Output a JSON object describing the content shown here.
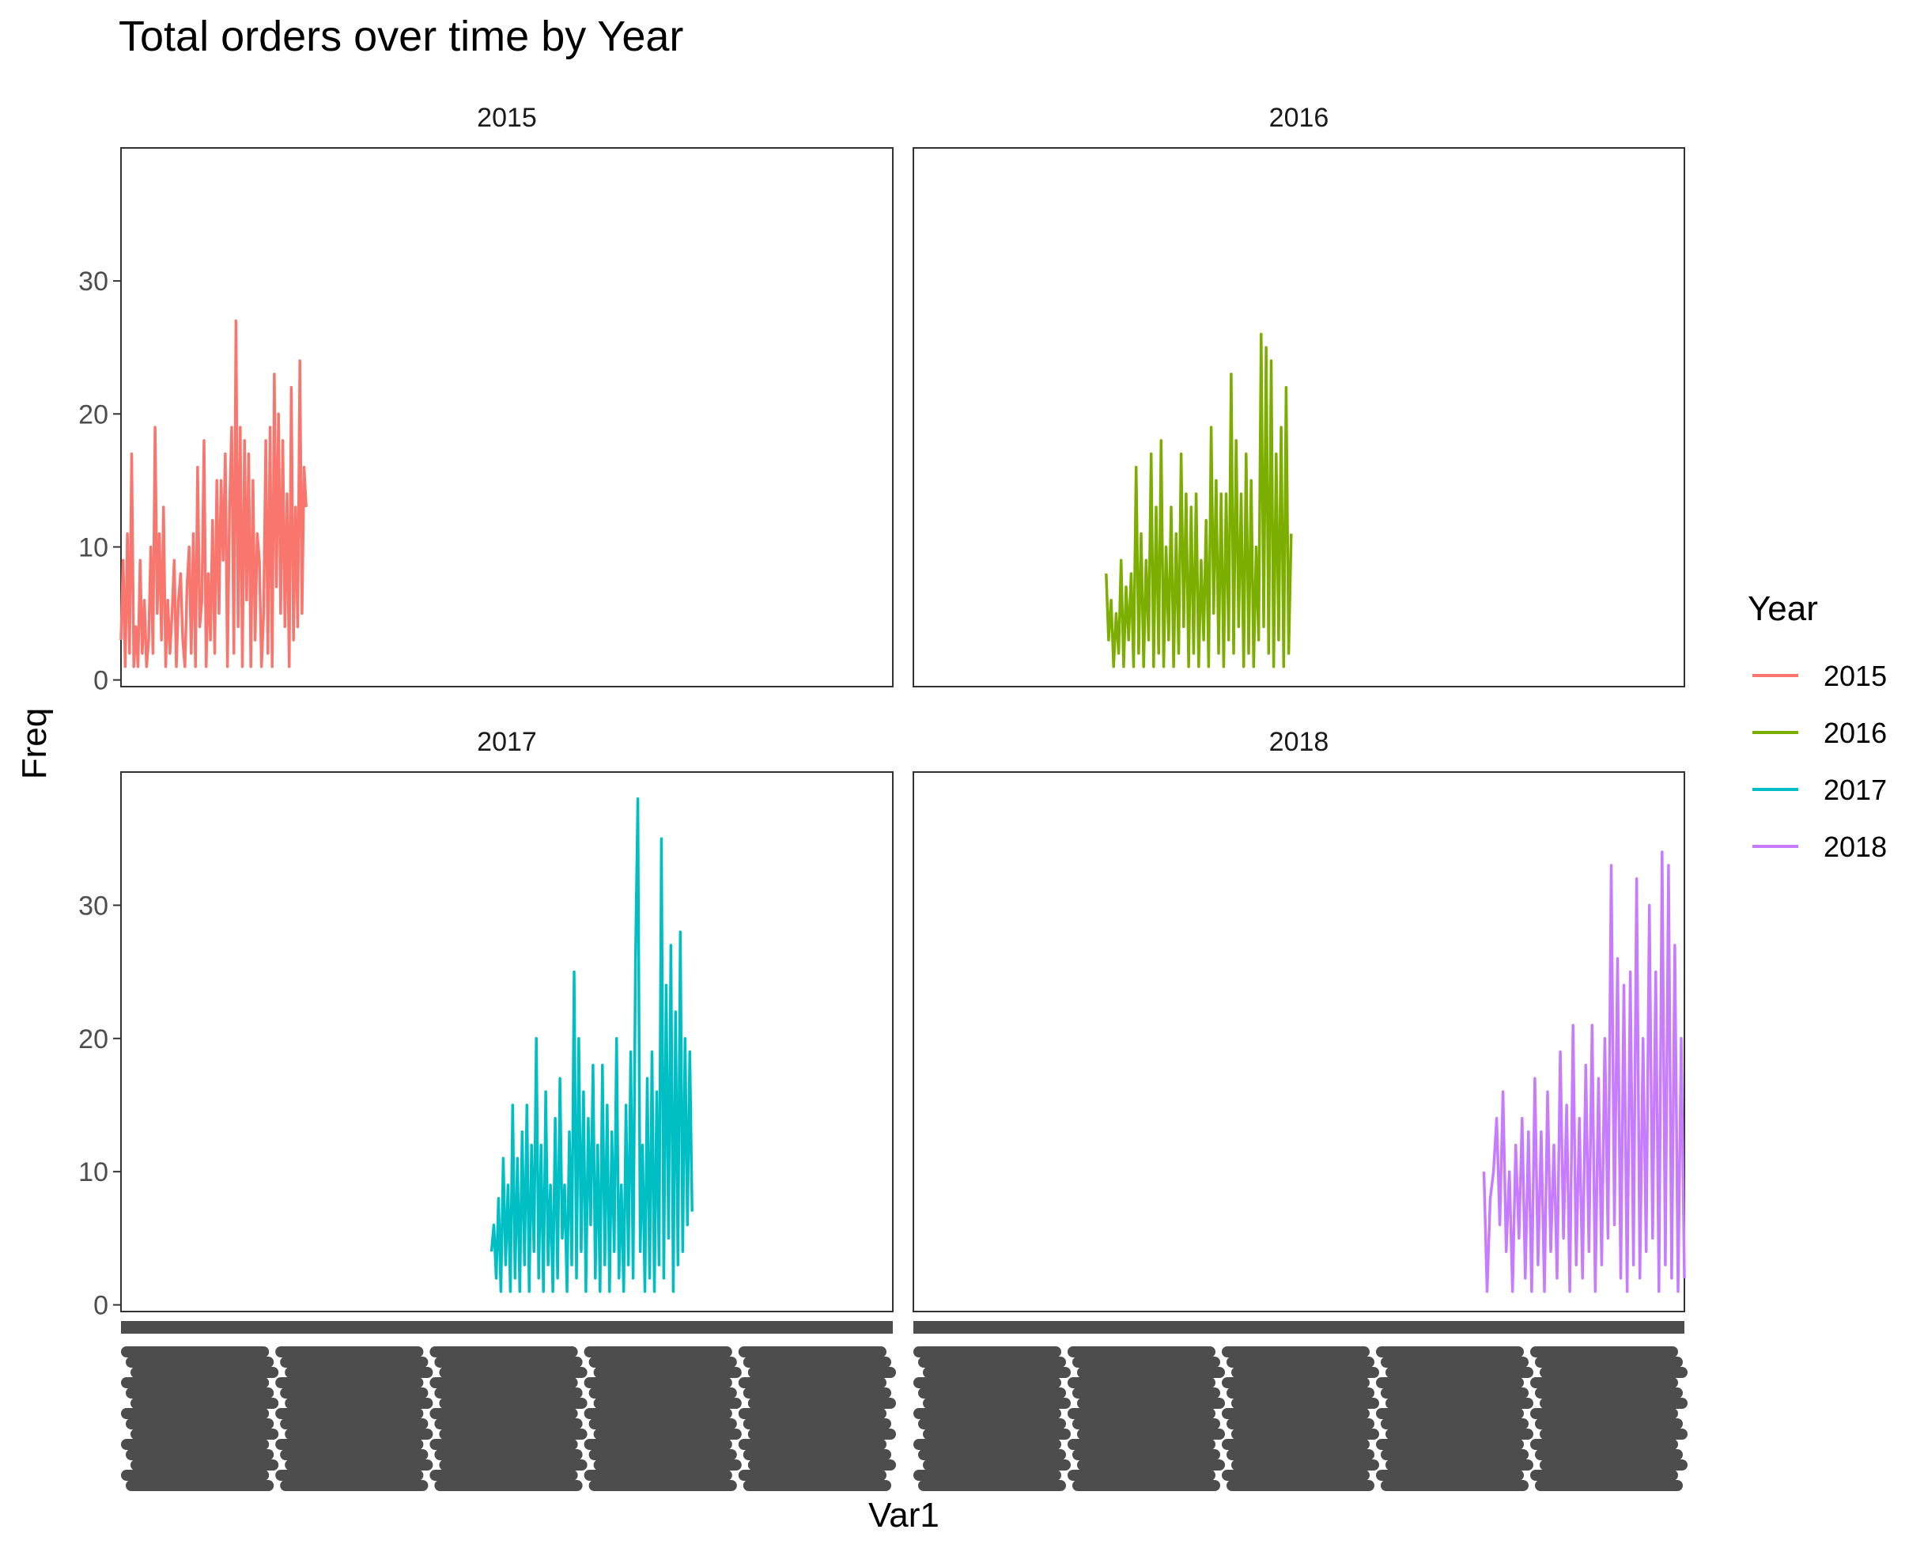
{
  "chart_data": {
    "type": "line",
    "title": "Total orders over time by Year",
    "xlabel": "Var1",
    "ylabel": "Freq",
    "ylim": [
      -0.5,
      40
    ],
    "yticks": [
      0,
      10,
      20,
      30
    ],
    "grid": false,
    "legend": {
      "title": "Year",
      "placement": "right"
    },
    "facets": [
      {
        "label": "2015",
        "name": "2015",
        "color": "#F8766D",
        "x_start": 0.0,
        "x_end": 0.24,
        "values": [
          3,
          9,
          1,
          11,
          2,
          17,
          1,
          4,
          1,
          9,
          2,
          6,
          1,
          3,
          10,
          2,
          19,
          5,
          11,
          3,
          13,
          1,
          6,
          2,
          5,
          9,
          1,
          6,
          8,
          3,
          1,
          7,
          10,
          2,
          11,
          1,
          16,
          4,
          6,
          18,
          1,
          8,
          3,
          12,
          2,
          15,
          5,
          15,
          9,
          17,
          1,
          13,
          19,
          2,
          27,
          4,
          19,
          1,
          18,
          6,
          17,
          1,
          15,
          3,
          11,
          9,
          1,
          5,
          18,
          2,
          19,
          1,
          23,
          7,
          20,
          5,
          18,
          4,
          14,
          1,
          22,
          3,
          13,
          4,
          24,
          5,
          16,
          13
        ]
      },
      {
        "label": "2016",
        "name": "2016",
        "color": "#7CAE00",
        "x_start": 0.25,
        "x_end": 0.49,
        "values": [
          8,
          3,
          6,
          1,
          5,
          2,
          9,
          1,
          7,
          3,
          8,
          1,
          16,
          2,
          11,
          1,
          9,
          3,
          17,
          1,
          13,
          2,
          18,
          1,
          10,
          3,
          13,
          1,
          11,
          2,
          17,
          4,
          14,
          1,
          13,
          2,
          14,
          1,
          9,
          3,
          12,
          1,
          19,
          5,
          15,
          2,
          14,
          1,
          14,
          3,
          23,
          2,
          18,
          4,
          14,
          1,
          17,
          2,
          15,
          1,
          10,
          3,
          26,
          4,
          25,
          2,
          24,
          1,
          17,
          3,
          19,
          1,
          22,
          2,
          11
        ]
      },
      {
        "label": "2017",
        "name": "2017",
        "color": "#00BFC4",
        "x_start": 0.48,
        "x_end": 0.74,
        "values": [
          4,
          6,
          2,
          8,
          1,
          11,
          3,
          9,
          1,
          15,
          2,
          11,
          1,
          13,
          3,
          15,
          1,
          12,
          4,
          20,
          2,
          12,
          1,
          16,
          3,
          9,
          1,
          14,
          2,
          17,
          5,
          9,
          1,
          13,
          3,
          25,
          2,
          20,
          4,
          16,
          1,
          14,
          6,
          18,
          2,
          12,
          1,
          18,
          3,
          15,
          1,
          13,
          4,
          20,
          2,
          9,
          1,
          15,
          3,
          19,
          2,
          26,
          38,
          4,
          12,
          1,
          17,
          2,
          19,
          1,
          16,
          3,
          35,
          2,
          24,
          5,
          27,
          1,
          22,
          3,
          28,
          4,
          20,
          6,
          19,
          7
        ]
      },
      {
        "label": "2018",
        "name": "2018",
        "color": "#C77CFF",
        "x_start": 0.74,
        "x_end": 1.0,
        "values": [
          10,
          1,
          8,
          10,
          14,
          6,
          16,
          4,
          10,
          1,
          12,
          5,
          14,
          2,
          13,
          1,
          17,
          3,
          13,
          1,
          16,
          4,
          12,
          2,
          19,
          5,
          15,
          1,
          21,
          3,
          14,
          2,
          18,
          4,
          21,
          1,
          17,
          3,
          20,
          5,
          33,
          6,
          26,
          2,
          24,
          1,
          25,
          3,
          32,
          2,
          20,
          4,
          30,
          5,
          25,
          1,
          34,
          3,
          33,
          2,
          27,
          1,
          20,
          2
        ]
      }
    ]
  }
}
